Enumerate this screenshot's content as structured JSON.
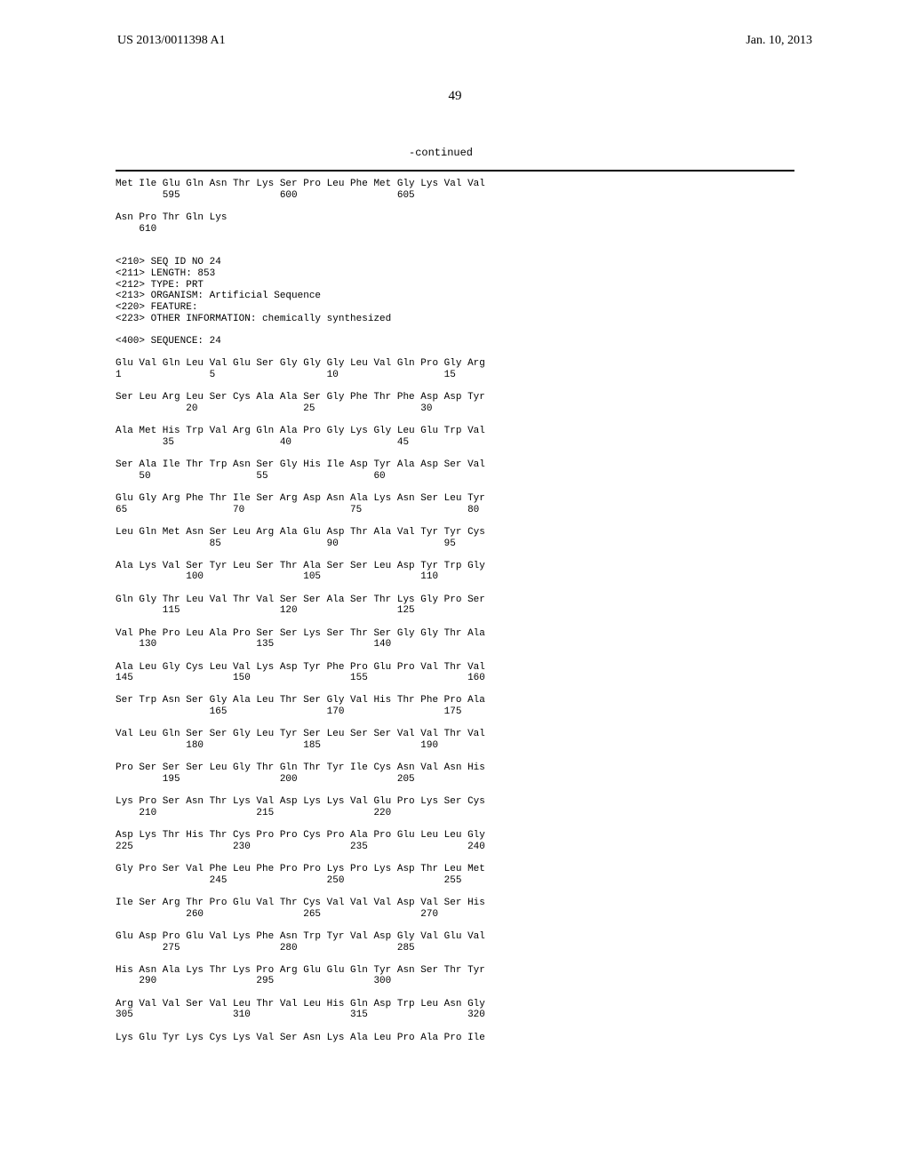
{
  "header": {
    "publication_number": "US 2013/0011398 A1",
    "publication_date": "Jan. 10, 2013"
  },
  "page_number": "49",
  "continued_label": "-continued",
  "sequence_text": "Met Ile Glu Gln Asn Thr Lys Ser Pro Leu Phe Met Gly Lys Val Val\n        595                 600                 605\n\nAsn Pro Thr Gln Lys\n    610\n\n\n<210> SEQ ID NO 24\n<211> LENGTH: 853\n<212> TYPE: PRT\n<213> ORGANISM: Artificial Sequence\n<220> FEATURE:\n<223> OTHER INFORMATION: chemically synthesized\n\n<400> SEQUENCE: 24\n\nGlu Val Gln Leu Val Glu Ser Gly Gly Gly Leu Val Gln Pro Gly Arg\n1               5                   10                  15\n\nSer Leu Arg Leu Ser Cys Ala Ala Ser Gly Phe Thr Phe Asp Asp Tyr\n            20                  25                  30\n\nAla Met His Trp Val Arg Gln Ala Pro Gly Lys Gly Leu Glu Trp Val\n        35                  40                  45\n\nSer Ala Ile Thr Trp Asn Ser Gly His Ile Asp Tyr Ala Asp Ser Val\n    50                  55                  60\n\nGlu Gly Arg Phe Thr Ile Ser Arg Asp Asn Ala Lys Asn Ser Leu Tyr\n65                  70                  75                  80\n\nLeu Gln Met Asn Ser Leu Arg Ala Glu Asp Thr Ala Val Tyr Tyr Cys\n                85                  90                  95\n\nAla Lys Val Ser Tyr Leu Ser Thr Ala Ser Ser Leu Asp Tyr Trp Gly\n            100                 105                 110\n\nGln Gly Thr Leu Val Thr Val Ser Ser Ala Ser Thr Lys Gly Pro Ser\n        115                 120                 125\n\nVal Phe Pro Leu Ala Pro Ser Ser Lys Ser Thr Ser Gly Gly Thr Ala\n    130                 135                 140\n\nAla Leu Gly Cys Leu Val Lys Asp Tyr Phe Pro Glu Pro Val Thr Val\n145                 150                 155                 160\n\nSer Trp Asn Ser Gly Ala Leu Thr Ser Gly Val His Thr Phe Pro Ala\n                165                 170                 175\n\nVal Leu Gln Ser Ser Gly Leu Tyr Ser Leu Ser Ser Val Val Thr Val\n            180                 185                 190\n\nPro Ser Ser Ser Leu Gly Thr Gln Thr Tyr Ile Cys Asn Val Asn His\n        195                 200                 205\n\nLys Pro Ser Asn Thr Lys Val Asp Lys Lys Val Glu Pro Lys Ser Cys\n    210                 215                 220\n\nAsp Lys Thr His Thr Cys Pro Pro Cys Pro Ala Pro Glu Leu Leu Gly\n225                 230                 235                 240\n\nGly Pro Ser Val Phe Leu Phe Pro Pro Lys Pro Lys Asp Thr Leu Met\n                245                 250                 255\n\nIle Ser Arg Thr Pro Glu Val Thr Cys Val Val Val Asp Val Ser His\n            260                 265                 270\n\nGlu Asp Pro Glu Val Lys Phe Asn Trp Tyr Val Asp Gly Val Glu Val\n        275                 280                 285\n\nHis Asn Ala Lys Thr Lys Pro Arg Glu Glu Gln Tyr Asn Ser Thr Tyr\n    290                 295                 300\n\nArg Val Val Ser Val Leu Thr Val Leu His Gln Asp Trp Leu Asn Gly\n305                 310                 315                 320\n\nLys Glu Tyr Lys Cys Lys Val Ser Asn Lys Ala Leu Pro Ala Pro Ile"
}
